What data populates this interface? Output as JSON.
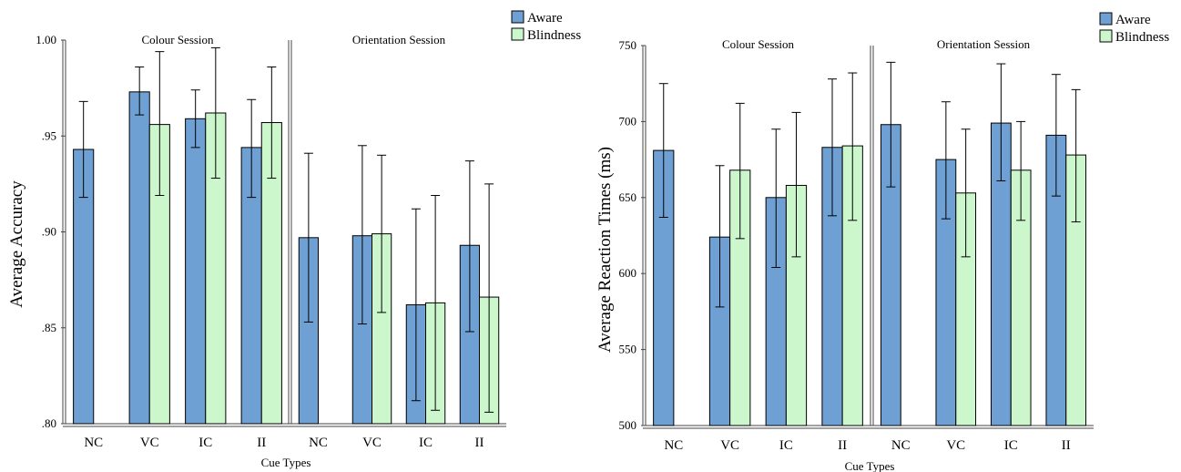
{
  "colors": {
    "aware": "#6FA0D4",
    "blindness": "#CCF7CC",
    "bar_stroke": "#000000",
    "axis": "#444444"
  },
  "chart_data": [
    {
      "type": "bar",
      "ylabel": "Average Accuracy",
      "xlabel": "Cue Types",
      "ylim": [
        0.8,
        1.0
      ],
      "yticks": [
        0.8,
        0.85,
        0.9,
        0.95,
        1.0
      ],
      "ytick_labels": [
        ".80",
        ".85",
        ".90",
        ".95",
        "1.00"
      ],
      "legend": [
        "Aware",
        "Blindness"
      ],
      "legend_position": "top-right",
      "categories": [
        "NC",
        "VC",
        "IC",
        "II"
      ],
      "panels": [
        {
          "title": "Colour Session",
          "series": [
            {
              "name": "Aware",
              "values": [
                0.943,
                0.973,
                0.959,
                0.944
              ],
              "err_low": [
                0.918,
                0.961,
                0.944,
                0.918
              ],
              "err_high": [
                0.968,
                0.986,
                0.974,
                0.969
              ]
            },
            {
              "name": "Blindness",
              "values": [
                null,
                0.956,
                0.962,
                0.957
              ],
              "err_low": [
                null,
                0.919,
                0.928,
                0.928
              ],
              "err_high": [
                null,
                0.994,
                0.996,
                0.986
              ]
            }
          ]
        },
        {
          "title": "Orientation Session",
          "series": [
            {
              "name": "Aware",
              "values": [
                0.897,
                0.898,
                0.862,
                0.893
              ],
              "err_low": [
                0.853,
                0.852,
                0.812,
                0.848
              ],
              "err_high": [
                0.941,
                0.945,
                0.912,
                0.937
              ]
            },
            {
              "name": "Blindness",
              "values": [
                null,
                0.899,
                0.863,
                0.866
              ],
              "err_low": [
                null,
                0.858,
                0.807,
                0.806
              ],
              "err_high": [
                null,
                0.94,
                0.919,
                0.925
              ]
            }
          ]
        }
      ]
    },
    {
      "type": "bar",
      "ylabel": "Average Reaction Times (ms)",
      "xlabel": "Cue Types",
      "ylim": [
        500,
        750
      ],
      "yticks": [
        500,
        550,
        600,
        650,
        700,
        750
      ],
      "ytick_labels": [
        "500",
        "550",
        "600",
        "650",
        "700",
        "750"
      ],
      "legend": [
        "Aware",
        "Blindness"
      ],
      "legend_position": "top-right",
      "categories": [
        "NC",
        "VC",
        "IC",
        "II"
      ],
      "panels": [
        {
          "title": "Colour Session",
          "series": [
            {
              "name": "Aware",
              "values": [
                681,
                624,
                650,
                683
              ],
              "err_low": [
                637,
                578,
                604,
                638
              ],
              "err_high": [
                725,
                671,
                695,
                728
              ]
            },
            {
              "name": "Blindness",
              "values": [
                null,
                668,
                658,
                684
              ],
              "err_low": [
                null,
                623,
                611,
                635
              ],
              "err_high": [
                null,
                712,
                706,
                732
              ]
            }
          ]
        },
        {
          "title": "Orientation Session",
          "series": [
            {
              "name": "Aware",
              "values": [
                698,
                675,
                699,
                691
              ],
              "err_low": [
                657,
                636,
                661,
                651
              ],
              "err_high": [
                739,
                713,
                738,
                731
              ]
            },
            {
              "name": "Blindness",
              "values": [
                null,
                653,
                668,
                678
              ],
              "err_low": [
                null,
                611,
                635,
                634
              ],
              "err_high": [
                null,
                695,
                700,
                721
              ]
            }
          ]
        }
      ]
    }
  ]
}
